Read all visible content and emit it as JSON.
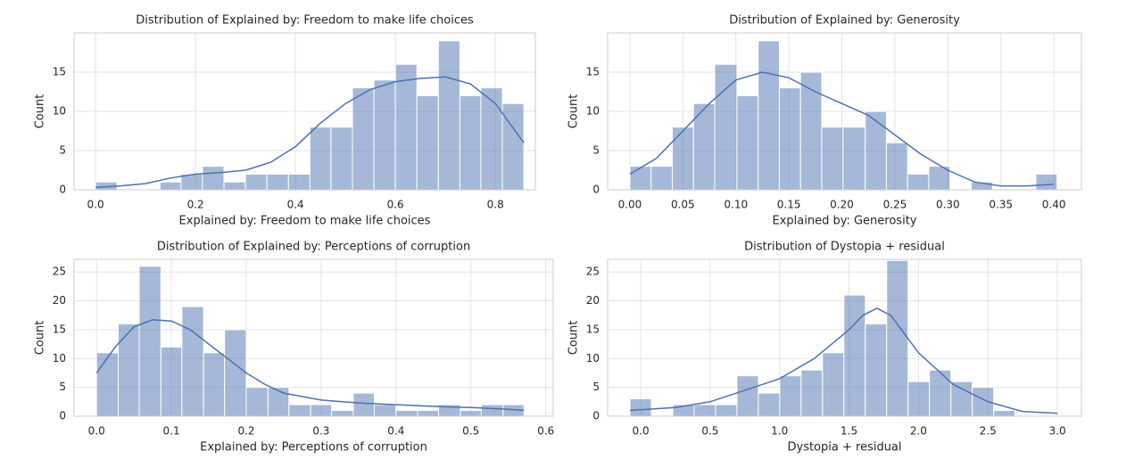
{
  "chart_data": [
    {
      "type": "histogram",
      "title": "Distribution of Explained by: Freedom to make life choices",
      "xlabel": "Explained by: Freedom to make life choices",
      "ylabel": "Count",
      "bins": [
        0,
        0.043,
        0.086,
        0.129,
        0.171,
        0.214,
        0.257,
        0.3,
        0.343,
        0.386,
        0.429,
        0.471,
        0.514,
        0.557,
        0.6,
        0.643,
        0.686,
        0.729,
        0.771,
        0.814,
        0.857
      ],
      "values": [
        1,
        0,
        0,
        1,
        2,
        3,
        1,
        2,
        2,
        2,
        8,
        8,
        13,
        14,
        16,
        12,
        19,
        12,
        13,
        11
      ],
      "kde": {
        "x": [
          0,
          0.05,
          0.1,
          0.15,
          0.2,
          0.25,
          0.3,
          0.35,
          0.4,
          0.45,
          0.5,
          0.55,
          0.6,
          0.65,
          0.7,
          0.75,
          0.8,
          0.857
        ],
        "values": [
          0.3,
          0.5,
          0.8,
          1.5,
          2,
          2.2,
          2.5,
          3.5,
          5.5,
          8.5,
          11,
          12.8,
          13.8,
          14.2,
          14.4,
          13.5,
          11,
          6
        ]
      },
      "color": "#4c72b0",
      "xlim": [
        -0.043,
        0.88
      ],
      "ylim": [
        0,
        20
      ],
      "xticks": [
        {
          "value": 0,
          "label": "0.0"
        },
        0.2,
        0.4,
        0.6,
        0.8
      ],
      "yticks": [
        0,
        5,
        10,
        15
      ],
      "grid": true
    },
    {
      "type": "histogram",
      "title": "Distribution of Explained by: Generosity",
      "xlabel": "Explained by: Generosity",
      "ylabel": "Count",
      "bins": [
        0,
        0.02,
        0.04,
        0.06,
        0.08,
        0.101,
        0.121,
        0.141,
        0.161,
        0.181,
        0.201,
        0.222,
        0.242,
        0.262,
        0.282,
        0.302,
        0.322,
        0.342,
        0.363,
        0.383,
        0.403
      ],
      "values": [
        3,
        3,
        8,
        11,
        16,
        12,
        19,
        13,
        15,
        8,
        8,
        10,
        6,
        2,
        3,
        0,
        1,
        0,
        0,
        2
      ],
      "kde": {
        "x": [
          0,
          0.025,
          0.05,
          0.075,
          0.1,
          0.125,
          0.15,
          0.175,
          0.2,
          0.225,
          0.25,
          0.275,
          0.3,
          0.325,
          0.35,
          0.375,
          0.4
        ],
        "values": [
          2,
          4,
          7.5,
          11,
          14,
          15,
          14.3,
          12.5,
          11,
          9.5,
          7,
          4.5,
          2.5,
          1,
          0.5,
          0.5,
          0.7
        ]
      },
      "color": "#4c72b0",
      "xlim": [
        -0.021,
        0.426
      ],
      "ylim": [
        0,
        20
      ],
      "xticks": [
        {
          "value": 0,
          "label": "0.00"
        },
        0.05,
        {
          "value": 0.1,
          "label": "0.10"
        },
        0.15,
        {
          "value": 0.2,
          "label": "0.20"
        },
        0.25,
        {
          "value": 0.3,
          "label": "0.30"
        },
        0.35,
        {
          "value": 0.4,
          "label": "0.40"
        }
      ],
      "yticks": [
        0,
        5,
        10,
        15
      ],
      "grid": true
    },
    {
      "type": "histogram",
      "title": "Distribution of Explained by: Perceptions of corruption",
      "xlabel": "Explained by: Perceptions of corruption",
      "ylabel": "Count",
      "bins": [
        0,
        0.029,
        0.057,
        0.086,
        0.114,
        0.143,
        0.171,
        0.2,
        0.229,
        0.257,
        0.286,
        0.314,
        0.343,
        0.371,
        0.4,
        0.429,
        0.457,
        0.486,
        0.514,
        0.543,
        0.571
      ],
      "values": [
        11,
        16,
        26,
        12,
        19,
        11,
        15,
        5,
        5,
        2,
        2,
        1,
        4,
        2,
        1,
        1,
        2,
        1,
        2,
        2
      ],
      "kde": {
        "x": [
          0,
          0.025,
          0.05,
          0.075,
          0.1,
          0.125,
          0.15,
          0.175,
          0.2,
          0.225,
          0.25,
          0.3,
          0.35,
          0.4,
          0.45,
          0.5,
          0.55,
          0.571
        ],
        "values": [
          7.5,
          12,
          15.5,
          16.7,
          16.5,
          15,
          12.5,
          10,
          7.5,
          5.5,
          4,
          2.8,
          2.3,
          2,
          1.7,
          1.5,
          1.2,
          1
        ]
      },
      "color": "#4c72b0",
      "xlim": [
        -0.03,
        0.61
      ],
      "ylim": [
        0,
        27.2
      ],
      "xticks": [
        {
          "value": 0,
          "label": "0.0"
        },
        0.1,
        0.2,
        0.3,
        0.4,
        0.5,
        0.6
      ],
      "yticks": [
        0,
        5,
        10,
        15,
        20,
        25
      ],
      "grid": true
    },
    {
      "type": "histogram",
      "title": "Distribution of Dystopia + residual",
      "xlabel": "Dystopia + residual",
      "ylabel": "Count",
      "bins": [
        -0.077,
        0.077,
        0.231,
        0.385,
        0.539,
        0.693,
        0.847,
        1.001,
        1.155,
        1.309,
        1.463,
        1.617,
        1.771,
        1.925,
        2.079,
        2.233,
        2.387,
        2.541,
        2.695,
        2.849,
        3.003
      ],
      "values": [
        3,
        0,
        2,
        2,
        2,
        7,
        4,
        7,
        8,
        11,
        21,
        16,
        27,
        6,
        8,
        6,
        5,
        1,
        0,
        0
      ],
      "kde": {
        "x": [
          -0.077,
          0.25,
          0.5,
          0.75,
          1,
          1.25,
          1.5,
          1.6,
          1.7,
          1.8,
          2,
          2.25,
          2.5,
          2.75,
          3
        ],
        "values": [
          1,
          1.5,
          2.5,
          4.5,
          6.5,
          10,
          15,
          17.5,
          18.7,
          17.5,
          11,
          5.5,
          2.5,
          0.8,
          0.5
        ]
      },
      "color": "#4c72b0",
      "xlim": [
        -0.238,
        3.173
      ],
      "ylim": [
        0,
        27.2
      ],
      "xticks": [
        {
          "value": 0,
          "label": "0.0"
        },
        0.5,
        {
          "value": 1,
          "label": "1.0"
        },
        1.5,
        {
          "value": 2,
          "label": "2.0"
        },
        2.5,
        {
          "value": 3,
          "label": "3.0"
        }
      ],
      "yticks": [
        0,
        5,
        10,
        15,
        20,
        25
      ],
      "grid": true
    }
  ]
}
